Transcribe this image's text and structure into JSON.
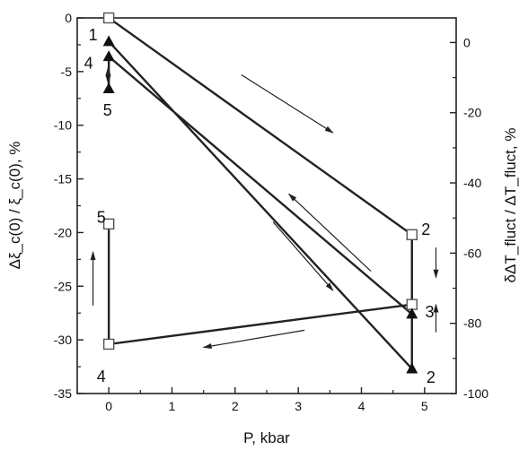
{
  "chart_data": {
    "type": "scatter",
    "xlabel": "P,  kbar",
    "ylabel_left": "Δξ_c(0) / ξ_c(0), %",
    "ylabel_right": "δΔT_fluct / ΔT_fluct, %",
    "xlim": [
      -0.5,
      5.5
    ],
    "ylim_left": [
      -35,
      0
    ],
    "ylim_right": [
      -100,
      7
    ],
    "x_ticks": [
      "0",
      "1",
      "2",
      "3",
      "4",
      "5"
    ],
    "y_left_ticks": [
      "0",
      "-5",
      "-10",
      "-15",
      "-20",
      "-25",
      "-30",
      "-35"
    ],
    "y_right_ticks": [
      "0",
      "-20",
      "-40",
      "-60",
      "-80",
      "-100"
    ],
    "grid": false,
    "series": [
      {
        "marker": "open-square",
        "axis": "left",
        "points": [
          {
            "x": 0,
            "y": 0,
            "label": "1"
          },
          {
            "x": 4.8,
            "y": -20.2,
            "label": "2"
          },
          {
            "x": 4.8,
            "y": -26.7,
            "label": "3"
          },
          {
            "x": 0,
            "y": -30.4,
            "label": "4"
          },
          {
            "x": 0,
            "y": -19.2,
            "label": "5"
          }
        ]
      },
      {
        "marker": "filled-triangle",
        "axis": "left",
        "points": [
          {
            "x": 0,
            "y": -2.2,
            "label": "1"
          },
          {
            "x": 4.8,
            "y": -32.7,
            "label": "2"
          },
          {
            "x": 4.8,
            "y": -27.6,
            "label": "3"
          },
          {
            "x": 0,
            "y": -3.6,
            "label": "4"
          },
          {
            "x": 0,
            "y": -6.6,
            "label": "5"
          }
        ]
      }
    ],
    "point_labels": [
      {
        "text": "1",
        "x": -0.25,
        "y": -1.6
      },
      {
        "text": "4",
        "x": -0.32,
        "y": -4.2
      },
      {
        "text": "5",
        "x": -0.02,
        "y": -8.6
      },
      {
        "text": "2",
        "x": 5.02,
        "y": -19.7
      },
      {
        "text": "3",
        "x": 5.08,
        "y": -27.4
      },
      {
        "text": "2",
        "x": 5.1,
        "y": -33.5
      },
      {
        "text": "5",
        "x": -0.12,
        "y": -18.6
      },
      {
        "text": "4",
        "x": -0.12,
        "y": -33.4
      }
    ],
    "direction_arrows": [
      {
        "from": [
          2.1,
          -5.3
        ],
        "to": [
          3.55,
          -10.7
        ]
      },
      {
        "from": [
          4.15,
          -23.6
        ],
        "to": [
          2.85,
          -16.4
        ]
      },
      {
        "from": [
          2.6,
          -19.0
        ],
        "to": [
          3.55,
          -25.4
        ]
      },
      {
        "from": [
          3.1,
          -29.1
        ],
        "to": [
          1.5,
          -30.7
        ]
      },
      {
        "from": [
          -0.25,
          -26.8
        ],
        "to": [
          -0.25,
          -21.8
        ]
      },
      {
        "from": [
          5.18,
          -21.4
        ],
        "to": [
          5.18,
          -24.2
        ]
      },
      {
        "from": [
          5.18,
          -29.3
        ],
        "to": [
          5.18,
          -26.7
        ]
      },
      {
        "from": [
          -0.01,
          -4.8
        ],
        "to": [
          -0.01,
          -6.1
        ]
      },
      {
        "from": [
          -0.01,
          -6.3
        ],
        "to": [
          -0.01,
          -4.6
        ]
      }
    ]
  }
}
